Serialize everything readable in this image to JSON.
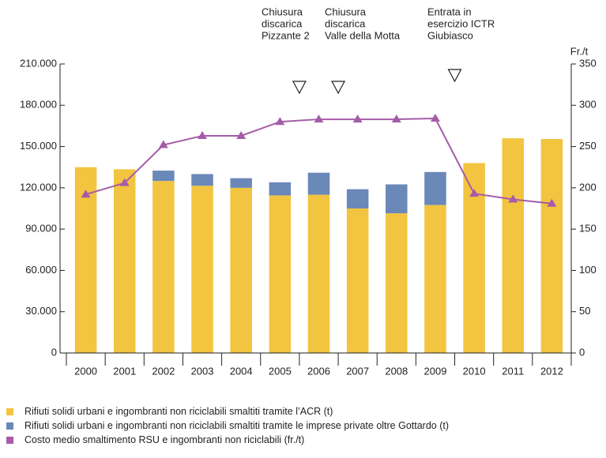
{
  "chart_data": {
    "type": "bar",
    "categories": [
      "2000",
      "2001",
      "2002",
      "2003",
      "2004",
      "2005",
      "2006",
      "2007",
      "2008",
      "2009",
      "2010",
      "2011",
      "2012"
    ],
    "series": [
      {
        "name": "Rifiuti solidi urbani e ingombranti non riciclabili smaltiti tramite l’ACR (t)",
        "color": "#f2c440",
        "values": [
          135000,
          133500,
          125000,
          121500,
          120000,
          114500,
          115000,
          105000,
          101500,
          107500,
          138000,
          156000,
          155500
        ]
      },
      {
        "name": "Rifiuti solidi urbani e ingombranti non riciclabili smaltiti tramite le imprese private oltre Gottardo (t)",
        "color": "#6a88b8",
        "values": [
          null,
          null,
          7500,
          8500,
          7000,
          9500,
          16000,
          14000,
          21000,
          24000,
          null,
          null,
          null
        ]
      },
      {
        "name": "Costo medio smaltimento RSU e ingombranti non riciclabili (fr./t)",
        "color": "#a55ca8",
        "type": "line",
        "axis": "y2",
        "values": [
          192,
          206,
          252,
          263,
          263,
          280,
          283,
          283,
          283,
          284,
          193,
          186,
          181
        ]
      }
    ],
    "ylim": [
      0,
      210000
    ],
    "yticks": [
      0,
      {
        "value": 30000,
        "label": "30.000"
      },
      {
        "value": 60000,
        "label": "60.000"
      },
      {
        "value": 90000,
        "label": "90.000"
      },
      {
        "value": 120000,
        "label": "120.000"
      },
      {
        "value": 150000,
        "label": "150.000"
      },
      {
        "value": 180000,
        "label": "180.000"
      },
      {
        "value": 210000,
        "label": "210.000"
      }
    ],
    "y2lim": [
      0,
      350
    ],
    "y2ticks": [
      0,
      50,
      100,
      150,
      200,
      250,
      300,
      350
    ],
    "y2_label": "Fr./t",
    "annotations": [
      {
        "lines": [
          "Chiusura",
          "discarica",
          "Pizzante 2"
        ]
      },
      {
        "lines": [
          "Chiusura",
          "discarica",
          "Valle della Motta"
        ]
      },
      {
        "lines": [
          "Entrata in",
          "esercizio ICTR",
          "Giubiasco"
        ]
      }
    ]
  }
}
